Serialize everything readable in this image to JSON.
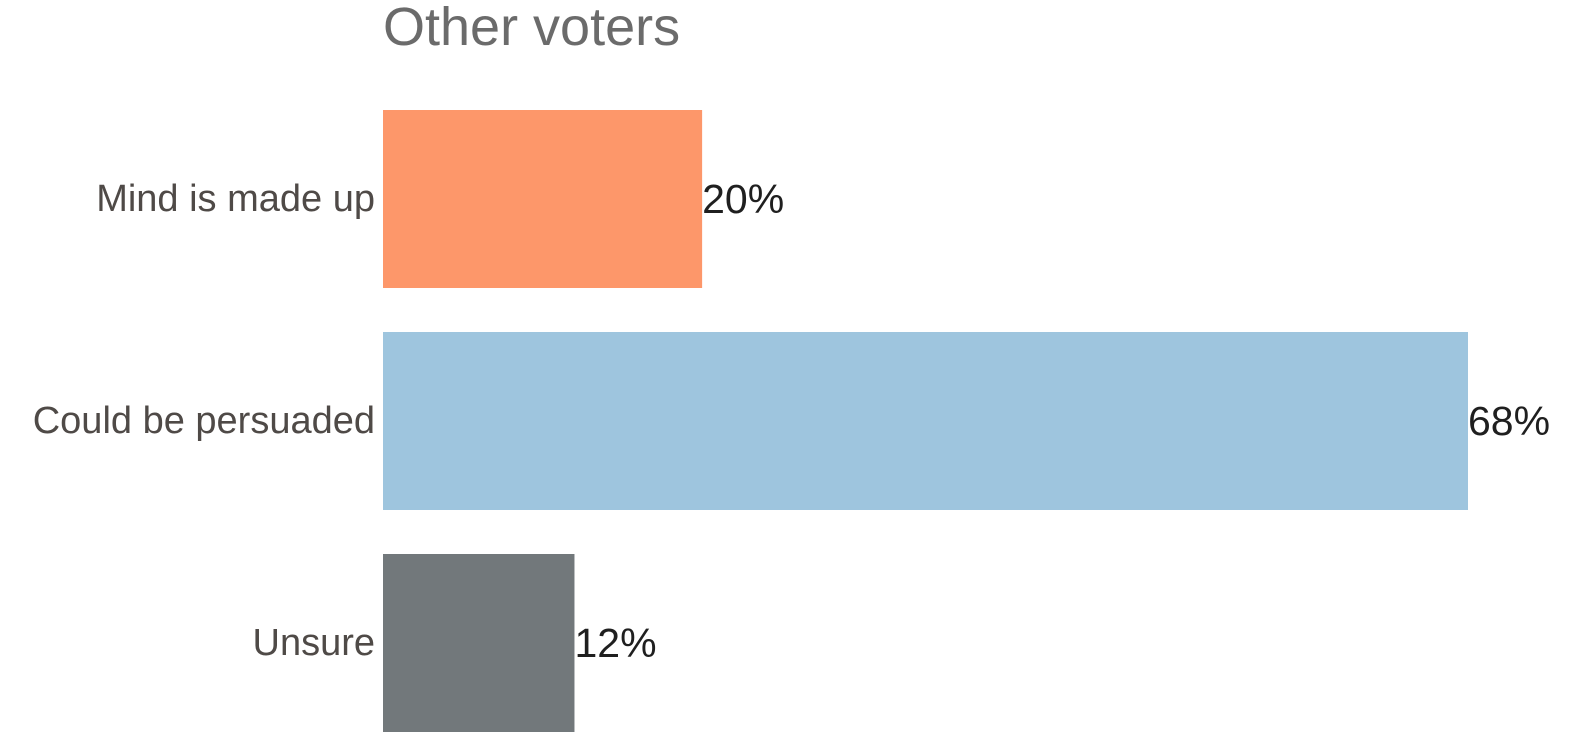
{
  "chart_data": {
    "type": "bar",
    "orientation": "horizontal",
    "title": "Other voters",
    "categories": [
      "Mind is made up",
      "Could be persuaded",
      "Unsure"
    ],
    "values": [
      20,
      68,
      12
    ],
    "value_labels": [
      "20%",
      "68%",
      "12%"
    ],
    "colors": [
      "#fd976a",
      "#9ec5de",
      "#72787b"
    ],
    "xlim": [
      0,
      68
    ],
    "xlabel": "",
    "ylabel": "",
    "grid": false,
    "legend": "none",
    "axes_visible": false
  }
}
